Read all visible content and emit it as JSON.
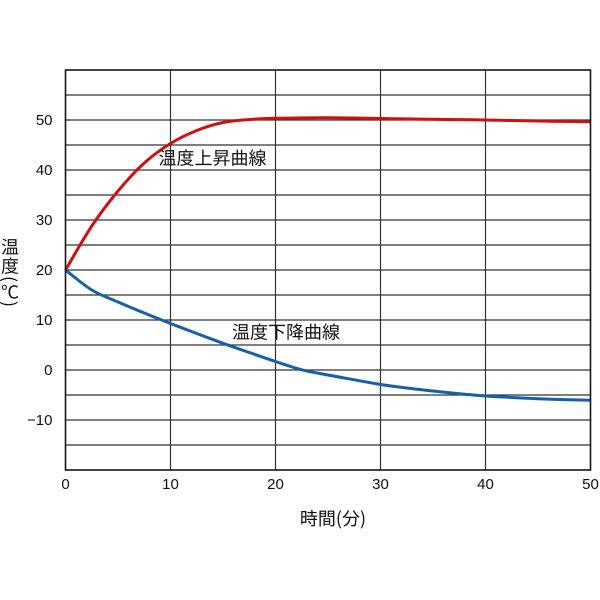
{
  "figure": {
    "background": "#ffffff",
    "grid_color": "#333333",
    "border_color": "#161616",
    "text_color": "#111111"
  },
  "chart_data": {
    "type": "line",
    "title": "",
    "xlabel": "時間(分)",
    "ylabel": "温度(℃)",
    "xlim": [
      0,
      50
    ],
    "ylim": [
      -20,
      60
    ],
    "x_ticks": [
      0,
      10,
      20,
      30,
      40,
      50
    ],
    "y_ticks": [
      -10,
      0,
      10,
      20,
      30,
      40,
      50
    ],
    "x_grid_step": 10,
    "y_grid_step": 5,
    "grid": true,
    "legend": "inline curve labels",
    "x": [
      0,
      2.5,
      5,
      7.5,
      10,
      12.5,
      15,
      17.5,
      20,
      22.5,
      25,
      27.5,
      30,
      32.5,
      35,
      37.5,
      40,
      42.5,
      45,
      47.5,
      50
    ],
    "series": [
      {
        "name": "温度上昇曲線",
        "color": "#cd1111",
        "values": [
          20,
          28.8,
          35.8,
          41.4,
          45.3,
          47.9,
          49.5,
          50.1,
          50.35,
          50.42,
          50.45,
          50.4,
          50.3,
          50.22,
          50.15,
          50.08,
          50.0,
          49.9,
          49.8,
          49.72,
          49.65
        ],
        "label": {
          "text": "温度上昇曲線",
          "x": 14.0,
          "y": 42.4
        }
      },
      {
        "name": "温度下降曲線",
        "color": "#1560a8",
        "values": [
          20,
          16.0,
          13.6,
          11.4,
          9.3,
          7.3,
          5.35,
          3.5,
          1.7,
          0.05,
          -1.0,
          -1.95,
          -2.9,
          -3.6,
          -4.2,
          -4.75,
          -5.2,
          -5.5,
          -5.75,
          -5.93,
          -6.05
        ],
        "label": {
          "text": "温度下降曲線",
          "x": 21.0,
          "y": 7.6
        }
      }
    ]
  }
}
